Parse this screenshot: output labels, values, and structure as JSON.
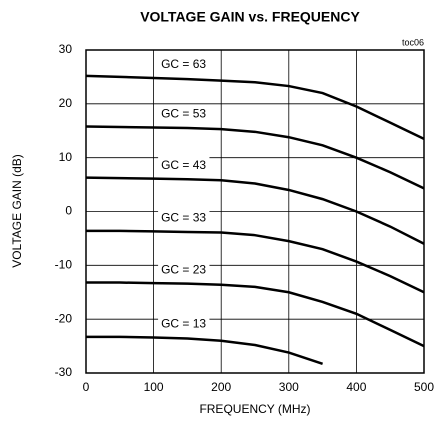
{
  "chart_data": {
    "type": "line",
    "title": "VOLTAGE GAIN vs. FREQUENCY",
    "note": "toc06",
    "xlabel": "FREQUENCY (MHz)",
    "ylabel": "VOLTAGE GAIN (dB)",
    "x": [
      0,
      50,
      100,
      150,
      200,
      250,
      300,
      350,
      400,
      450,
      500
    ],
    "series": [
      {
        "name": "GC = 63",
        "color": "#000000",
        "values": [
          25.2,
          25,
          24.8,
          24.6,
          24.3,
          24,
          23.3,
          22,
          19.5,
          16.5,
          13.5
        ]
      },
      {
        "name": "GC = 53",
        "color": "#000000",
        "values": [
          15.8,
          15.7,
          15.6,
          15.5,
          15.3,
          14.8,
          13.8,
          12.3,
          10,
          7.3,
          4.3
        ]
      },
      {
        "name": "GC = 43",
        "color": "#000000",
        "values": [
          6.3,
          6.2,
          6.1,
          6,
          5.8,
          5.2,
          4,
          2.3,
          0,
          -2.8,
          -6
        ]
      },
      {
        "name": "GC = 33",
        "color": "#000000",
        "values": [
          -3.6,
          -3.6,
          -3.7,
          -3.8,
          -3.9,
          -4.4,
          -5.5,
          -7,
          -9.3,
          -12,
          -15
        ]
      },
      {
        "name": "GC = 23",
        "color": "#000000",
        "values": [
          -13.2,
          -13.2,
          -13.3,
          -13.4,
          -13.6,
          -14,
          -15,
          -16.8,
          -19,
          -22,
          -25
        ]
      },
      {
        "name": "GC = 13",
        "color": "#000000",
        "values": [
          -23.3,
          -23.3,
          -23.4,
          -23.6,
          -24,
          -24.8,
          -26.2,
          -28.3,
          null,
          null,
          null
        ]
      }
    ],
    "xlim": [
      0,
      500
    ],
    "xticks": [
      0,
      100,
      200,
      300,
      400,
      500
    ],
    "ylim": [
      -30,
      30
    ],
    "yticks": [
      -30,
      -20,
      -10,
      0,
      10,
      20,
      30
    ],
    "grid": true
  }
}
